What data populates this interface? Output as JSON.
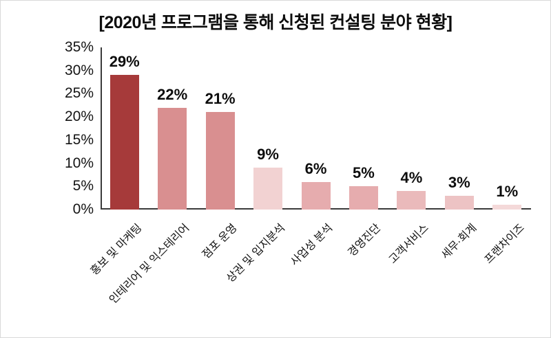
{
  "chart_data": {
    "type": "bar",
    "title": "[2020년 프로그램을 통해 신청된 컨설팅 분야 현황]",
    "categories": [
      "홍보 및 마케팅",
      "인테리어 및 익스테리어",
      "점포 운영",
      "상권 및 입지분석",
      "사업성 분석",
      "경영진단",
      "고객서비스",
      "세무·회계",
      "프랜차이즈"
    ],
    "values": [
      29,
      22,
      21,
      9,
      6,
      5,
      4,
      3,
      1
    ],
    "value_labels": [
      "29%",
      "22%",
      "21%",
      "9%",
      "6%",
      "5%",
      "4%",
      "3%",
      "1%"
    ],
    "bar_colors": [
      "#A63A3A",
      "#D98F90",
      "#D98F90",
      "#F2D2D2",
      "#E6ACAE",
      "#E6ACAE",
      "#EABABB",
      "#EDC3C4",
      "#F4D9D9"
    ],
    "y_ticks": [
      "0%",
      "5%",
      "10%",
      "15%",
      "20%",
      "25%",
      "30%",
      "35%"
    ],
    "ylim": [
      0,
      35
    ],
    "xlabel": "",
    "ylabel": "",
    "grid": false,
    "legend": "none"
  },
  "colors": {
    "axis": "#3a3a3a",
    "text": "#111111",
    "accent_dark_red": "#A63A3A",
    "accent_rose": "#D98F90",
    "accent_light_pink": "#F2D2D2"
  }
}
